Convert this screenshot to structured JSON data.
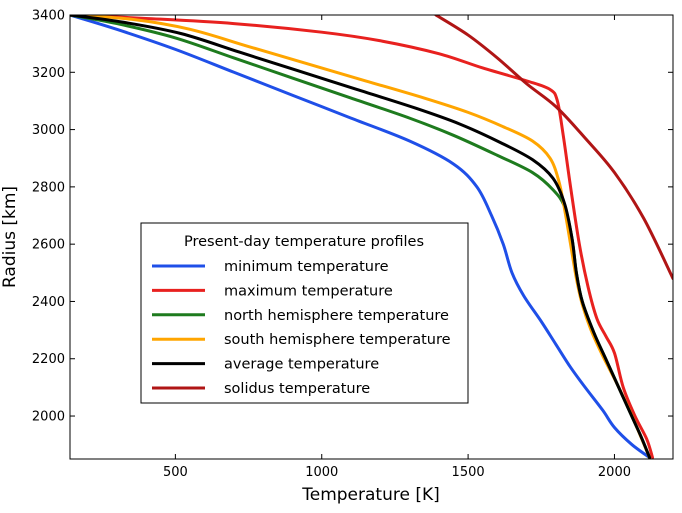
{
  "chart_data": {
    "type": "line",
    "title": "",
    "xlabel": "Temperature [K]",
    "ylabel": "Radius [km]",
    "xlim": [
      140,
      2200
    ],
    "ylim": [
      1850,
      3400
    ],
    "x_ticks": [
      500,
      1000,
      1500,
      2000
    ],
    "y_ticks": [
      2000,
      2200,
      2400,
      2600,
      2800,
      3000,
      3200,
      3400
    ],
    "x_tick_labels": [
      "500",
      "1000",
      "1500",
      "2000"
    ],
    "y_tick_labels": [
      "2000",
      "2200",
      "2400",
      "2600",
      "2800",
      "3000",
      "3200",
      "3400"
    ],
    "grid": false,
    "legend": {
      "title": "Present-day temperature profiles",
      "placement": "lower-left"
    },
    "series": [
      {
        "name": "minimum temperature",
        "color": "#1f4fe8",
        "points": [
          [
            140,
            3400
          ],
          [
            300,
            3350
          ],
          [
            500,
            3280
          ],
          [
            700,
            3200
          ],
          [
            900,
            3120
          ],
          [
            1100,
            3040
          ],
          [
            1300,
            2960
          ],
          [
            1450,
            2880
          ],
          [
            1530,
            2800
          ],
          [
            1580,
            2700
          ],
          [
            1620,
            2600
          ],
          [
            1650,
            2500
          ],
          [
            1690,
            2420
          ],
          [
            1750,
            2330
          ],
          [
            1800,
            2250
          ],
          [
            1850,
            2170
          ],
          [
            1900,
            2100
          ],
          [
            1960,
            2020
          ],
          [
            2000,
            1960
          ],
          [
            2060,
            1900
          ],
          [
            2120,
            1855
          ]
        ]
      },
      {
        "name": "maximum temperature",
        "color": "#e8211f",
        "points": [
          [
            140,
            3400
          ],
          [
            400,
            3388
          ],
          [
            700,
            3370
          ],
          [
            1000,
            3340
          ],
          [
            1200,
            3310
          ],
          [
            1400,
            3265
          ],
          [
            1550,
            3215
          ],
          [
            1700,
            3170
          ],
          [
            1780,
            3140
          ],
          [
            1805,
            3100
          ],
          [
            1825,
            2980
          ],
          [
            1850,
            2800
          ],
          [
            1880,
            2600
          ],
          [
            1910,
            2450
          ],
          [
            1940,
            2340
          ],
          [
            1970,
            2280
          ],
          [
            2000,
            2220
          ],
          [
            2030,
            2100
          ],
          [
            2070,
            2000
          ],
          [
            2110,
            1920
          ],
          [
            2130,
            1855
          ]
        ]
      },
      {
        "name": "north hemisphere temperature",
        "color": "#1e7b1e",
        "points": [
          [
            140,
            3400
          ],
          [
            300,
            3370
          ],
          [
            500,
            3320
          ],
          [
            700,
            3250
          ],
          [
            900,
            3180
          ],
          [
            1100,
            3110
          ],
          [
            1300,
            3040
          ],
          [
            1450,
            2980
          ],
          [
            1600,
            2910
          ],
          [
            1720,
            2850
          ],
          [
            1790,
            2790
          ],
          [
            1830,
            2730
          ],
          [
            1855,
            2620
          ],
          [
            1870,
            2500
          ],
          [
            1890,
            2400
          ],
          [
            1930,
            2290
          ],
          [
            1970,
            2200
          ],
          [
            2010,
            2110
          ],
          [
            2050,
            2020
          ],
          [
            2090,
            1930
          ],
          [
            2120,
            1855
          ]
        ]
      },
      {
        "name": "south hemisphere temperature",
        "color": "#ffa500",
        "points": [
          [
            140,
            3400
          ],
          [
            350,
            3385
          ],
          [
            550,
            3350
          ],
          [
            750,
            3290
          ],
          [
            950,
            3230
          ],
          [
            1150,
            3170
          ],
          [
            1350,
            3110
          ],
          [
            1500,
            3060
          ],
          [
            1620,
            3010
          ],
          [
            1720,
            2960
          ],
          [
            1780,
            2900
          ],
          [
            1810,
            2820
          ],
          [
            1830,
            2720
          ],
          [
            1850,
            2600
          ],
          [
            1870,
            2480
          ],
          [
            1890,
            2390
          ],
          [
            1920,
            2300
          ],
          [
            1960,
            2210
          ],
          [
            2010,
            2110
          ],
          [
            2060,
            2000
          ],
          [
            2120,
            1855
          ]
        ]
      },
      {
        "name": "average temperature",
        "color": "#000000",
        "points": [
          [
            140,
            3400
          ],
          [
            320,
            3375
          ],
          [
            520,
            3335
          ],
          [
            720,
            3270
          ],
          [
            920,
            3205
          ],
          [
            1120,
            3140
          ],
          [
            1320,
            3075
          ],
          [
            1470,
            3020
          ],
          [
            1610,
            2955
          ],
          [
            1720,
            2895
          ],
          [
            1790,
            2830
          ],
          [
            1830,
            2740
          ],
          [
            1855,
            2620
          ],
          [
            1870,
            2500
          ],
          [
            1890,
            2400
          ],
          [
            1930,
            2290
          ],
          [
            1970,
            2200
          ],
          [
            2010,
            2110
          ],
          [
            2050,
            2020
          ],
          [
            2090,
            1930
          ],
          [
            2120,
            1855
          ]
        ]
      },
      {
        "name": "solidus temperature",
        "color": "#b01515",
        "points": [
          [
            1390,
            3400
          ],
          [
            1500,
            3330
          ],
          [
            1600,
            3250
          ],
          [
            1700,
            3160
          ],
          [
            1800,
            3080
          ],
          [
            1900,
            2970
          ],
          [
            2000,
            2850
          ],
          [
            2100,
            2690
          ],
          [
            2200,
            2480
          ]
        ]
      }
    ]
  }
}
